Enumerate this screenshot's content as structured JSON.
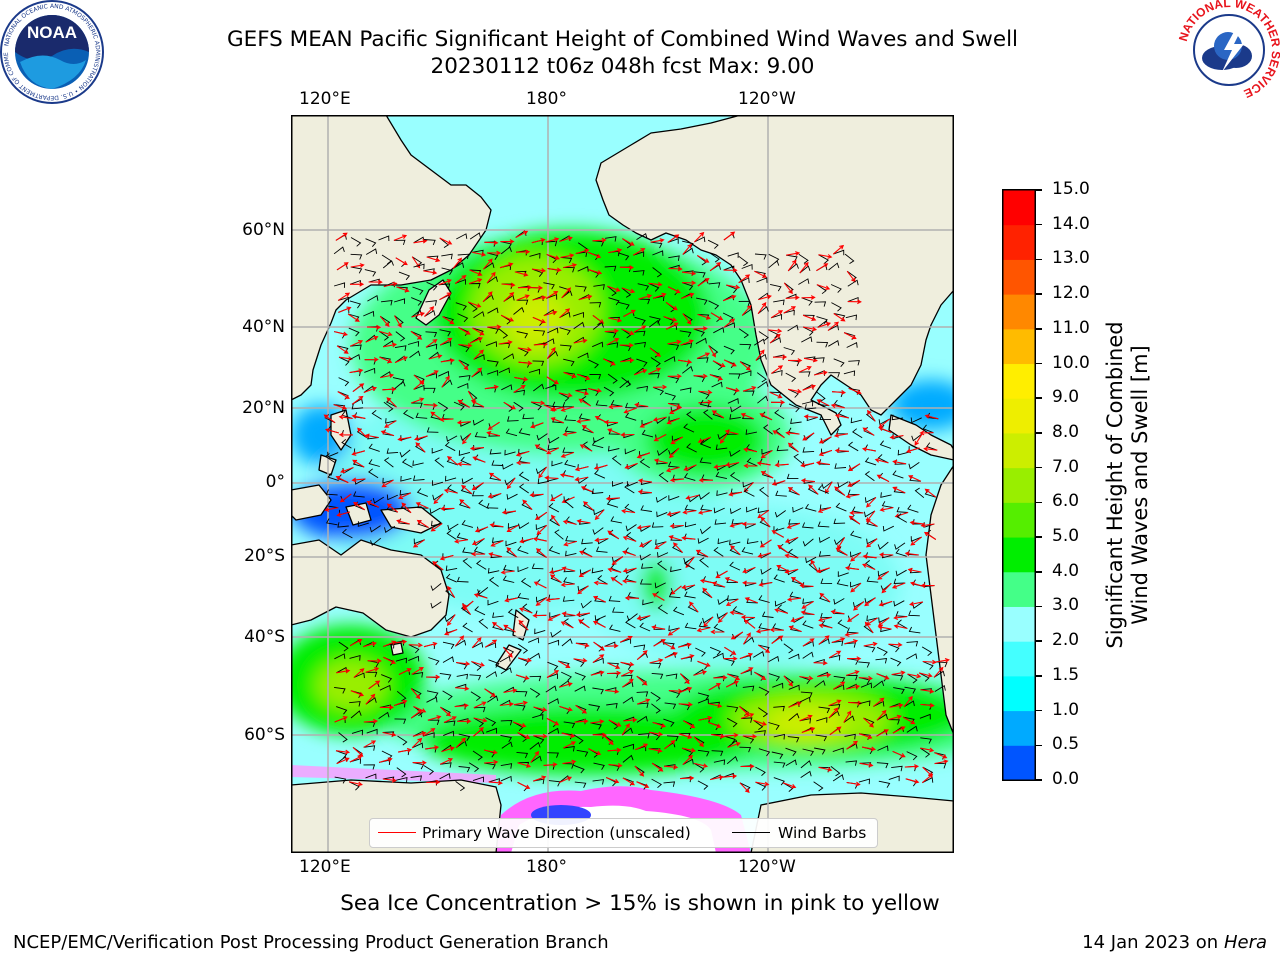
{
  "header": {
    "title_line1": "GEFS MEAN Pacific Significant Height of Combined Wind Waves and Swell",
    "title_line2": "20230112 t06z 048h fcst   Max: 9.00"
  },
  "logos": {
    "noaa": {
      "text": "NOAA",
      "ring_text": "NATIONAL OCEANIC AND ATMOSPHERIC ADMINISTRATION • U.S. DEPARTMENT OF COMMERCE"
    },
    "nws": {
      "ring_text": "NATIONAL WEATHER SERVICE"
    }
  },
  "map": {
    "lon_labels": [
      "120°E",
      "180°",
      "120°W"
    ],
    "lat_labels": [
      "60°N",
      "40°N",
      "20°N",
      "0°",
      "20°S",
      "40°S",
      "60°S"
    ],
    "colors": {
      "land": "#efeedd",
      "grid": "#b0b0b0",
      "wave_dir": "#ff0000",
      "wind_barb": "#000000",
      "ice": "#ff66ff"
    }
  },
  "legend": {
    "items": [
      {
        "label": "Primary Wave Direction (unscaled)",
        "color": "#ff0000"
      },
      {
        "label": "Wind Barbs",
        "color": "#000000"
      }
    ]
  },
  "colorbar": {
    "label_line1": "Significant Height of Combined",
    "label_line2": "Wind Waves and Swell [m]",
    "ticks": [
      "0.0",
      "0.5",
      "1.0",
      "1.5",
      "2.0",
      "3.0",
      "4.0",
      "5.0",
      "6.0",
      "7.0",
      "8.0",
      "9.0",
      "10.0",
      "11.0",
      "12.0",
      "13.0",
      "14.0",
      "15.0"
    ],
    "colors": [
      "#0000ff",
      "#0055ff",
      "#00aaff",
      "#00ffff",
      "#44ffff",
      "#99ffff",
      "#44ff88",
      "#00ee00",
      "#55ee00",
      "#99ee00",
      "#ccee00",
      "#eeee00",
      "#ffee00",
      "#ffbb00",
      "#ff8800",
      "#ff5500",
      "#ff2200",
      "#ff0000"
    ]
  },
  "footer": {
    "ice_note": "Sea Ice Concentration > 15% is shown in pink to yellow",
    "left": "NCEP/EMC/Verification Post Processing Product Generation Branch",
    "right_prefix": "14 Jan 2023 on ",
    "right_host": "Hera"
  }
}
